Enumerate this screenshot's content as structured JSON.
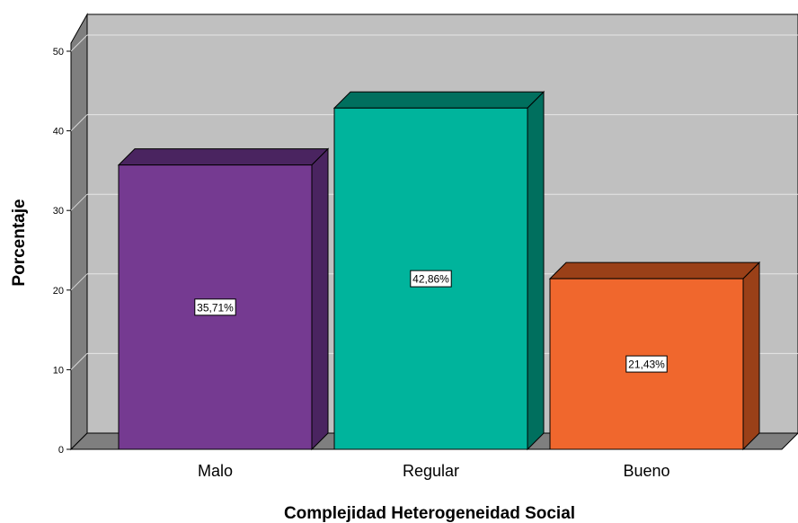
{
  "chart_data": {
    "type": "bar",
    "categories": [
      "Malo",
      "Regular",
      "Bueno"
    ],
    "values": [
      35.71,
      42.86,
      21.43
    ],
    "data_labels": [
      "35,71%",
      "42,86%",
      "21,43%"
    ],
    "colors": [
      "#753a91",
      "#00b49c",
      "#f0672d"
    ],
    "top_colors": [
      "#4a2460",
      "#006f5e",
      "#9a4018"
    ],
    "side_colors": [
      "#4a2460",
      "#006f5e",
      "#9a4018"
    ],
    "xlabel": "Complejidad Heterogeneidad Social",
    "ylabel": "Porcentaje",
    "ylim": [
      0,
      50
    ],
    "yticks": [
      0,
      10,
      20,
      30,
      40,
      50
    ],
    "grid": true,
    "style": "3d-bar",
    "plot_background": "#c0c0c0"
  }
}
